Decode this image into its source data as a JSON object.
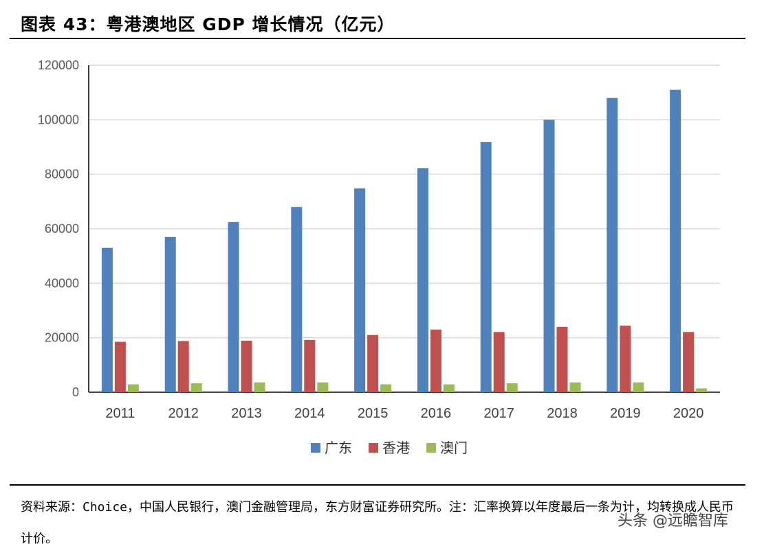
{
  "title": "图表 43：粤港澳地区 GDP 增长情况（亿元）",
  "source": "资料来源：Choice，中国人民银行，澳门金融管理局，东方财富证券研究所。注：汇率换算以年度最后一条为计，均转换成人民币计价。",
  "watermark": "头条 @远瞻智库",
  "chart_data": {
    "type": "bar",
    "title": "粤港澳地区 GDP 增长情况（亿元）",
    "categories": [
      "2011",
      "2012",
      "2013",
      "2014",
      "2015",
      "2016",
      "2017",
      "2018",
      "2019",
      "2020"
    ],
    "ylim": [
      0,
      120000
    ],
    "yticks": [
      0,
      20000,
      40000,
      60000,
      80000,
      100000,
      120000
    ],
    "grid": true,
    "legend": "bottom",
    "series": [
      {
        "name": "广东",
        "color": "#4F81BD",
        "values": [
          53000,
          57000,
          62500,
          68000,
          74800,
          82200,
          91800,
          100000,
          108000,
          111000
        ]
      },
      {
        "name": "香港",
        "color": "#C0504D",
        "values": [
          18500,
          18800,
          18900,
          19200,
          21000,
          23000,
          22100,
          24000,
          24400,
          22100
        ]
      },
      {
        "name": "澳门",
        "color": "#9BBB59",
        "values": [
          2900,
          3300,
          3600,
          3600,
          2900,
          2900,
          3300,
          3600,
          3600,
          1400
        ]
      }
    ]
  }
}
